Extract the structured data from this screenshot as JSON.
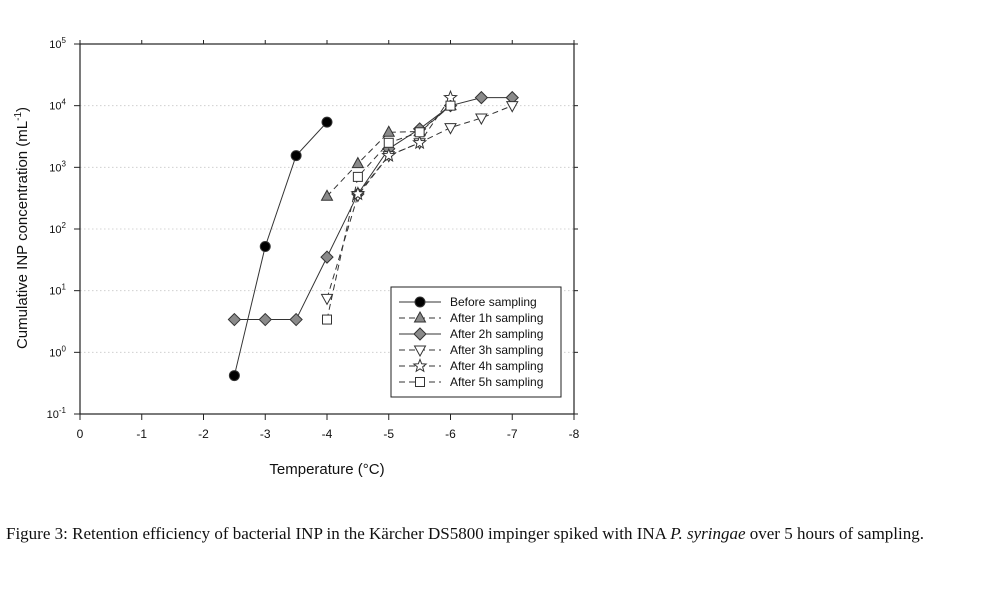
{
  "chart_data": {
    "type": "scatter",
    "xlabel": "Temperature (°C)",
    "ylabel_main": "Cumulative INP concentration (mL",
    "ylabel_sup": "-1",
    "ylabel_end": ")",
    "xlim": [
      0,
      -8
    ],
    "ylim": [
      0.1,
      100000
    ],
    "yscale": "log",
    "grid": "dotted horizontal",
    "legend_position": "lower-right",
    "x_ticks": [
      0,
      -1,
      -2,
      -3,
      -4,
      -5,
      -6,
      -7,
      -8
    ],
    "x_tick_labels": [
      "0",
      "-1",
      "-2",
      "-3",
      "-4",
      "-5",
      "-6",
      "-7",
      "-8"
    ],
    "y_ticks": [
      {
        "exp": -1,
        "label_base": "10",
        "label_sup": "-1"
      },
      {
        "exp": 0,
        "label_base": "10",
        "label_sup": "0"
      },
      {
        "exp": 1,
        "label_base": "10",
        "label_sup": "1"
      },
      {
        "exp": 2,
        "label_base": "10",
        "label_sup": "2"
      },
      {
        "exp": 3,
        "label_base": "10",
        "label_sup": "3"
      },
      {
        "exp": 4,
        "label_base": "10",
        "label_sup": "4"
      },
      {
        "exp": 5,
        "label_base": "10",
        "label_sup": "5"
      }
    ],
    "series": [
      {
        "name": "Before sampling",
        "marker": "circle",
        "fill": "#000000",
        "dash": "solid",
        "x": [
          -2.5,
          -3.0,
          -3.5,
          -4.0
        ],
        "y": [
          0.42,
          52,
          1550,
          5400
        ]
      },
      {
        "name": "After 1h sampling",
        "marker": "triangle-up",
        "fill": "#8a8a8a",
        "dash": "dashed",
        "x": [
          -4.0,
          -4.5,
          -5.0,
          -5.5,
          -6.0
        ],
        "y": [
          340,
          1150,
          3700,
          3800,
          10000
        ]
      },
      {
        "name": "After 2h sampling",
        "marker": "diamond",
        "fill": "#8a8a8a",
        "dash": "solid",
        "x": [
          -2.5,
          -3.0,
          -3.5,
          -4.0,
          -4.5,
          -5.0,
          -5.5,
          -6.0,
          -6.5,
          -7.0
        ],
        "y": [
          3.4,
          3.4,
          3.4,
          35,
          370,
          2000,
          4200,
          10000,
          13500,
          13500
        ]
      },
      {
        "name": "After 3h sampling",
        "marker": "triangle-down",
        "fill": "#ffffff",
        "dash": "dashed",
        "x": [
          -4.0,
          -4.5,
          -5.0,
          -5.5,
          -6.0,
          -6.5,
          -7.0
        ],
        "y": [
          7.5,
          350,
          1550,
          2500,
          4400,
          6300,
          10000
        ]
      },
      {
        "name": "After 4h sampling",
        "marker": "star",
        "fill": "#ffffff",
        "dash": "dashed",
        "x": [
          -4.5,
          -5.0,
          -5.5,
          -6.0
        ],
        "y": [
          370,
          1550,
          2500,
          13500
        ]
      },
      {
        "name": "After 5h sampling",
        "marker": "square",
        "fill": "#ffffff",
        "dash": "dashed",
        "x": [
          -4.0,
          -4.5,
          -5.0,
          -5.5,
          -6.0
        ],
        "y": [
          3.4,
          700,
          2500,
          3700,
          10000
        ]
      }
    ]
  },
  "caption": {
    "prefix": "Figure 3: Retention efficiency of bacterial INP in the Kärcher DS5800 impinger spiked with INA ",
    "species": "P. syringae",
    "suffix": " over 5 hours of sampling."
  }
}
